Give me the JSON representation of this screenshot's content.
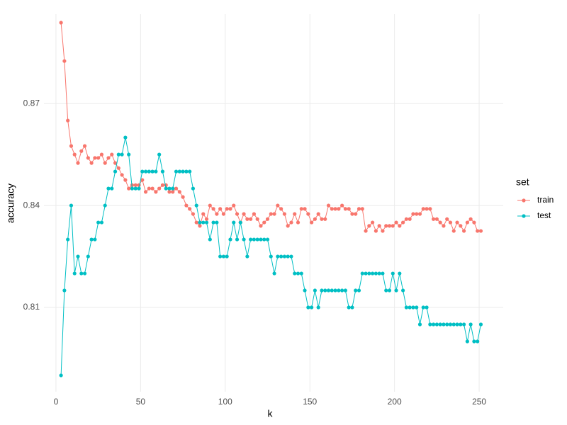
{
  "chart_data": {
    "type": "line",
    "x_label": "k",
    "y_label": "accuracy",
    "legend_title": "set",
    "x": [
      3,
      5,
      7,
      9,
      11,
      13,
      15,
      17,
      19,
      21,
      23,
      25,
      27,
      29,
      31,
      33,
      35,
      37,
      39,
      41,
      43,
      45,
      47,
      49,
      51,
      53,
      55,
      57,
      59,
      61,
      63,
      65,
      67,
      69,
      71,
      73,
      75,
      77,
      79,
      81,
      83,
      85,
      87,
      89,
      91,
      93,
      95,
      97,
      99,
      101,
      103,
      105,
      107,
      109,
      111,
      113,
      115,
      117,
      119,
      121,
      123,
      125,
      127,
      129,
      131,
      133,
      135,
      137,
      139,
      141,
      143,
      145,
      147,
      149,
      151,
      153,
      155,
      157,
      159,
      161,
      163,
      165,
      167,
      169,
      171,
      173,
      175,
      177,
      179,
      181,
      183,
      185,
      187,
      189,
      191,
      193,
      195,
      197,
      199,
      201,
      203,
      205,
      207,
      209,
      211,
      213,
      215,
      217,
      219,
      221,
      223,
      225,
      227,
      229,
      231,
      233,
      235,
      237,
      239,
      241,
      243,
      245,
      247,
      249,
      251
    ],
    "series": [
      {
        "name": "train",
        "color": "#F8766D",
        "values": [
          0.8938,
          0.8825,
          0.865,
          0.8575,
          0.855,
          0.8525,
          0.856,
          0.8575,
          0.854,
          0.8525,
          0.854,
          0.854,
          0.855,
          0.8525,
          0.854,
          0.855,
          0.8525,
          0.851,
          0.849,
          0.8475,
          0.845,
          0.846,
          0.846,
          0.846,
          0.8475,
          0.844,
          0.845,
          0.845,
          0.844,
          0.845,
          0.846,
          0.846,
          0.844,
          0.844,
          0.845,
          0.844,
          0.8425,
          0.84,
          0.839,
          0.8375,
          0.835,
          0.834,
          0.8375,
          0.836,
          0.84,
          0.839,
          0.8375,
          0.839,
          0.8375,
          0.839,
          0.839,
          0.84,
          0.8375,
          0.835,
          0.8375,
          0.836,
          0.836,
          0.8375,
          0.836,
          0.834,
          0.835,
          0.836,
          0.8375,
          0.8375,
          0.84,
          0.839,
          0.8375,
          0.834,
          0.835,
          0.8375,
          0.835,
          0.839,
          0.839,
          0.8375,
          0.835,
          0.836,
          0.8375,
          0.836,
          0.836,
          0.84,
          0.839,
          0.839,
          0.839,
          0.84,
          0.839,
          0.839,
          0.8375,
          0.8375,
          0.839,
          0.839,
          0.8325,
          0.834,
          0.835,
          0.8325,
          0.834,
          0.8325,
          0.834,
          0.834,
          0.834,
          0.835,
          0.834,
          0.835,
          0.836,
          0.836,
          0.8375,
          0.8375,
          0.8375,
          0.839,
          0.839,
          0.839,
          0.836,
          0.836,
          0.835,
          0.834,
          0.836,
          0.835,
          0.8325,
          0.835,
          0.834,
          0.8325,
          0.835,
          0.836,
          0.835,
          0.8325,
          0.8325
        ]
      },
      {
        "name": "test",
        "color": "#00BFC4",
        "values": [
          0.79,
          0.815,
          0.83,
          0.84,
          0.82,
          0.825,
          0.82,
          0.82,
          0.825,
          0.83,
          0.83,
          0.835,
          0.835,
          0.84,
          0.845,
          0.845,
          0.85,
          0.855,
          0.855,
          0.86,
          0.855,
          0.845,
          0.845,
          0.845,
          0.85,
          0.85,
          0.85,
          0.85,
          0.85,
          0.855,
          0.85,
          0.845,
          0.845,
          0.845,
          0.85,
          0.85,
          0.85,
          0.85,
          0.85,
          0.845,
          0.84,
          0.835,
          0.835,
          0.835,
          0.83,
          0.835,
          0.835,
          0.825,
          0.825,
          0.825,
          0.83,
          0.835,
          0.83,
          0.835,
          0.83,
          0.825,
          0.83,
          0.83,
          0.83,
          0.83,
          0.83,
          0.83,
          0.825,
          0.82,
          0.825,
          0.825,
          0.825,
          0.825,
          0.825,
          0.82,
          0.82,
          0.82,
          0.815,
          0.81,
          0.81,
          0.815,
          0.81,
          0.815,
          0.815,
          0.815,
          0.815,
          0.815,
          0.815,
          0.815,
          0.815,
          0.81,
          0.81,
          0.815,
          0.815,
          0.82,
          0.82,
          0.82,
          0.82,
          0.82,
          0.82,
          0.82,
          0.815,
          0.815,
          0.82,
          0.815,
          0.82,
          0.815,
          0.81,
          0.81,
          0.81,
          0.81,
          0.805,
          0.81,
          0.81,
          0.805,
          0.805,
          0.805,
          0.805,
          0.805,
          0.805,
          0.805,
          0.805,
          0.805,
          0.805,
          0.805,
          0.8,
          0.805,
          0.8,
          0.8,
          0.805
        ]
      }
    ],
    "xlim": [
      -7.1,
      264.2
    ],
    "ylim": [
      0.7852,
      0.8963
    ],
    "xticks": [
      0,
      50,
      100,
      150,
      200,
      250
    ],
    "yticks": [
      0.81,
      0.84,
      0.87
    ],
    "grid": true
  }
}
